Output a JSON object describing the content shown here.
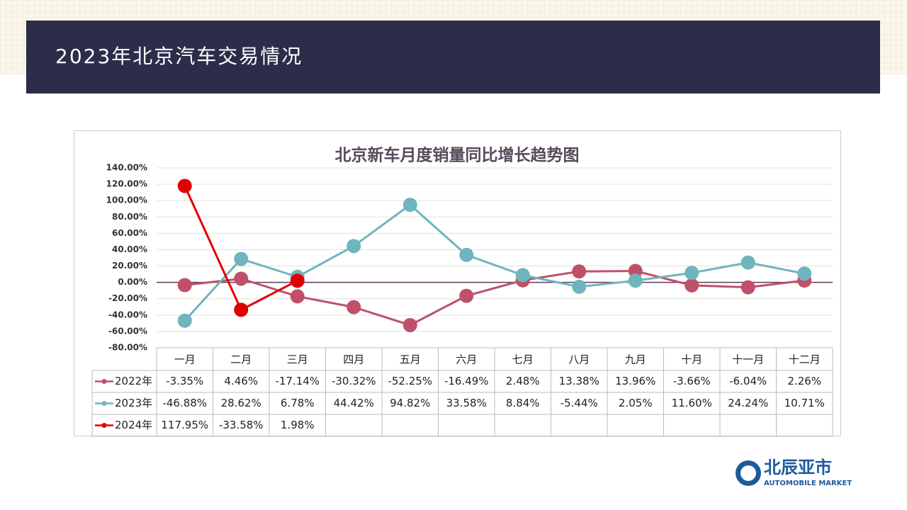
{
  "page_title": "2023年北京汽车交易情况",
  "logo": {
    "name": "北辰亚市",
    "subtitle": "AUTOMOBILE MARKET"
  },
  "chart_data": {
    "type": "line",
    "title": "北京新车月度销量同比增长趋势图",
    "categories": [
      "一月",
      "二月",
      "三月",
      "四月",
      "五月",
      "六月",
      "七月",
      "八月",
      "九月",
      "十月",
      "十一月",
      "十二月"
    ],
    "series": [
      {
        "name": "2022年",
        "color": "#c0506a",
        "values": [
          -3.35,
          4.46,
          -17.14,
          -30.32,
          -52.25,
          -16.49,
          2.48,
          13.38,
          13.96,
          -3.66,
          -6.04,
          2.26
        ],
        "value_labels": [
          "-3.35%",
          "4.46%",
          "-17.14%",
          "-30.32%",
          "-52.25%",
          "-16.49%",
          "2.48%",
          "13.38%",
          "13.96%",
          "-3.66%",
          "-6.04%",
          "2.26%"
        ]
      },
      {
        "name": "2023年",
        "color": "#6fb5bd",
        "values": [
          -46.88,
          28.62,
          6.78,
          44.42,
          94.82,
          33.58,
          8.84,
          -5.44,
          2.05,
          11.6,
          24.24,
          10.71
        ],
        "value_labels": [
          "-46.88%",
          "28.62%",
          "6.78%",
          "44.42%",
          "94.82%",
          "33.58%",
          "8.84%",
          "-5.44%",
          "2.05%",
          "11.60%",
          "24.24%",
          "10.71%"
        ]
      },
      {
        "name": "2024年",
        "color": "#e00000",
        "values": [
          117.95,
          -33.58,
          1.98,
          null,
          null,
          null,
          null,
          null,
          null,
          null,
          null,
          null
        ],
        "value_labels": [
          "117.95%",
          "-33.58%",
          "1.98%",
          null,
          null,
          null,
          null,
          null,
          null,
          null,
          null,
          null
        ]
      }
    ],
    "ylim": [
      -80,
      140
    ],
    "yticks": [
      {
        "value": -80,
        "label": "-80.00%"
      },
      {
        "value": -60,
        "label": "-60.00%"
      },
      {
        "value": -40,
        "label": "-40.00%"
      },
      {
        "value": -20,
        "label": "-20.00%"
      },
      {
        "value": 0,
        "label": "0.00%"
      },
      {
        "value": 20,
        "label": "20.00%"
      },
      {
        "value": 40,
        "label": "40.00%"
      },
      {
        "value": 60,
        "label": "60.00%"
      },
      {
        "value": 80,
        "label": "80.00%"
      },
      {
        "value": 100,
        "label": "100.00%"
      },
      {
        "value": 120,
        "label": "120.00%"
      },
      {
        "value": 140,
        "label": "140.00%"
      }
    ],
    "grid": true
  }
}
